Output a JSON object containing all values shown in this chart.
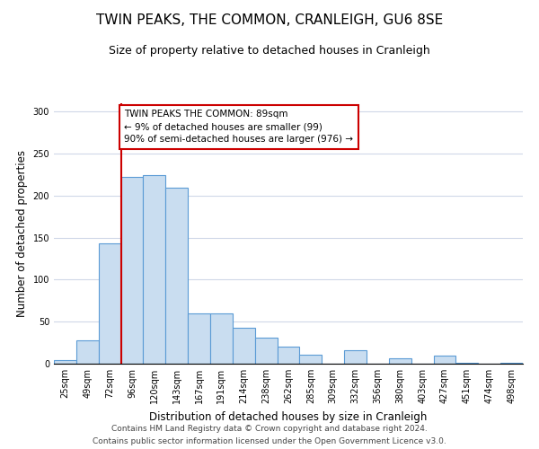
{
  "title": "TWIN PEAKS, THE COMMON, CRANLEIGH, GU6 8SE",
  "subtitle": "Size of property relative to detached houses in Cranleigh",
  "xlabel": "Distribution of detached houses by size in Cranleigh",
  "ylabel": "Number of detached properties",
  "footnote1": "Contains HM Land Registry data © Crown copyright and database right 2024.",
  "footnote2": "Contains public sector information licensed under the Open Government Licence v3.0.",
  "bin_labels": [
    "25sqm",
    "49sqm",
    "72sqm",
    "96sqm",
    "120sqm",
    "143sqm",
    "167sqm",
    "191sqm",
    "214sqm",
    "238sqm",
    "262sqm",
    "285sqm",
    "309sqm",
    "332sqm",
    "356sqm",
    "380sqm",
    "403sqm",
    "427sqm",
    "451sqm",
    "474sqm",
    "498sqm"
  ],
  "bar_heights": [
    4,
    28,
    143,
    222,
    224,
    210,
    60,
    60,
    43,
    31,
    20,
    11,
    0,
    16,
    0,
    6,
    0,
    10,
    1,
    0,
    1
  ],
  "bar_color": "#c9ddf0",
  "bar_edge_color": "#5b9bd5",
  "bar_edge_width": 0.8,
  "vline_x_idx": 3,
  "vline_color": "#cc0000",
  "annotation_box_text": "TWIN PEAKS THE COMMON: 89sqm\n← 9% of detached houses are smaller (99)\n90% of semi-detached houses are larger (976) →",
  "annotation_box_color": "#cc0000",
  "ylim": [
    0,
    310
  ],
  "yticks": [
    0,
    50,
    100,
    150,
    200,
    250,
    300
  ],
  "background_color": "#ffffff",
  "grid_color": "#d0d8e8",
  "title_fontsize": 11,
  "subtitle_fontsize": 9,
  "xlabel_fontsize": 8.5,
  "ylabel_fontsize": 8.5,
  "tick_fontsize": 7,
  "annotation_fontsize": 7.5,
  "footnote_fontsize": 6.5
}
